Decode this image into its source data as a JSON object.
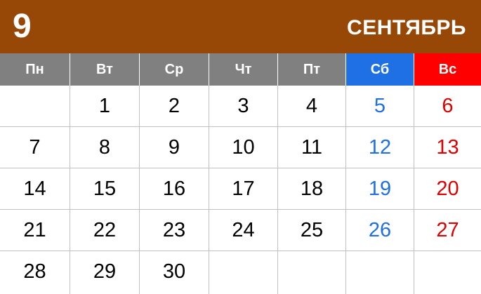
{
  "header": {
    "month_number": "9",
    "month_name": "СЕНТЯБРЬ"
  },
  "weekdays": [
    "Пн",
    "Вт",
    "Ср",
    "Чт",
    "Пт",
    "Сб",
    "Вс"
  ],
  "weeks": [
    [
      "",
      "1",
      "2",
      "3",
      "4",
      "5",
      "6"
    ],
    [
      "7",
      "8",
      "9",
      "10",
      "11",
      "12",
      "13"
    ],
    [
      "14",
      "15",
      "16",
      "17",
      "18",
      "19",
      "20"
    ],
    [
      "21",
      "22",
      "23",
      "24",
      "25",
      "26",
      "27"
    ],
    [
      "28",
      "29",
      "30",
      "",
      "",
      "",
      ""
    ]
  ],
  "colors": {
    "header_bg": "#974807",
    "weekday_bg": "#808080",
    "saturday": "#1f6fe5",
    "sunday": "#ff0000"
  }
}
